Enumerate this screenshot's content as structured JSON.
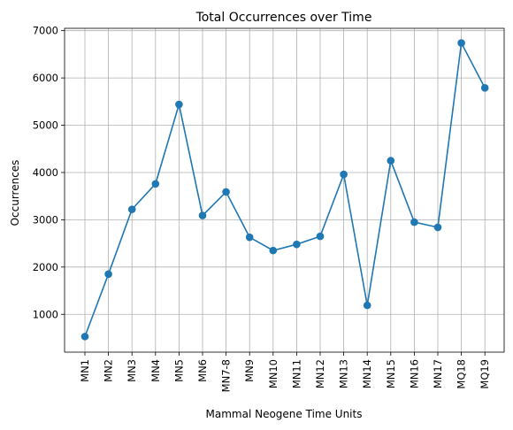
{
  "chart_data": {
    "type": "line",
    "title": "Total Occurrences over Time",
    "xlabel": "Mammal Neogene Time Units",
    "ylabel": "Occurrences",
    "categories": [
      "MN1",
      "MN2",
      "MN3",
      "MN4",
      "MN5",
      "MN6",
      "MN7-8",
      "MN9",
      "MN10",
      "MN11",
      "MN12",
      "MN13",
      "MN14",
      "MN15",
      "MN16",
      "MN17",
      "MQ18",
      "MQ19"
    ],
    "series": [
      {
        "values": [
          530,
          1850,
          3220,
          3760,
          5440,
          3090,
          3590,
          2630,
          2350,
          2480,
          2650,
          3960,
          1190,
          4250,
          2950,
          2840,
          6740,
          5790
        ]
      }
    ],
    "ylim": [
      200,
      7050
    ],
    "yticks": [
      1000,
      2000,
      3000,
      4000,
      5000,
      6000,
      7000
    ],
    "grid": true,
    "line_color": "#1f77b4",
    "marker": "circle"
  }
}
